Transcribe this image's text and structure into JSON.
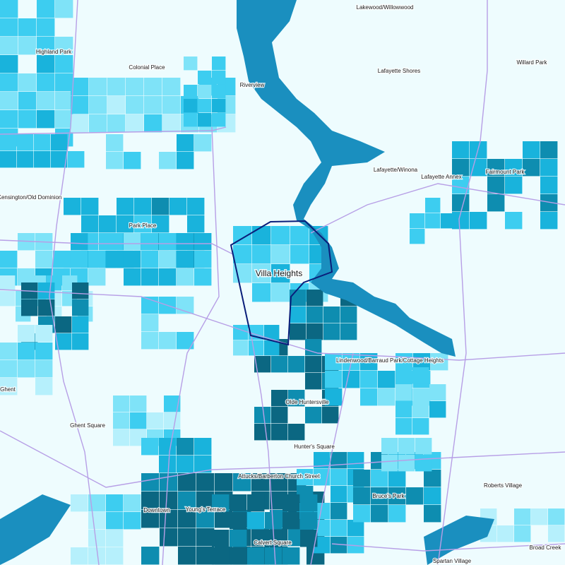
{
  "map": {
    "selected": "Villa Heights",
    "neighborhoods": [
      "Lakewood/Willowwood",
      "Highland Park",
      "Colonial Place",
      "Lafayette Shores",
      "Willard Park",
      "Riverview",
      "Lafayette/Winona",
      "Lafayette Annex",
      "Fairmount Park",
      "Kensington/Old Dominion",
      "Park Place",
      "Lindenwood/Barraud Park/Cottage Heights",
      "Ghent",
      "Olde Huntersville",
      "Ghent Square",
      "Hunter's Square",
      "Attucks/Barberton Church Street",
      "Roberts Village",
      "Bruce's Park",
      "Downtown",
      "Young's Terrace",
      "Calvert Square",
      "Broad Creek",
      "Spartan Village"
    ]
  }
}
